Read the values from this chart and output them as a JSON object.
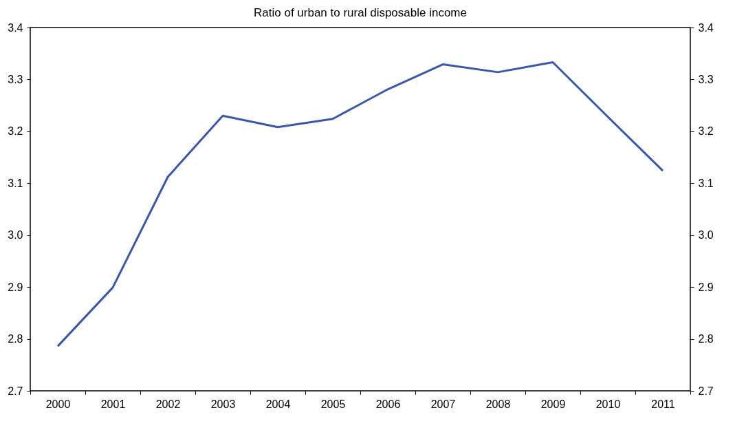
{
  "chart_data": {
    "type": "line",
    "title": "Ratio of urban to rural disposable income",
    "categories": [
      "2000",
      "2001",
      "2002",
      "2003",
      "2004",
      "2005",
      "2006",
      "2007",
      "2008",
      "2009",
      "2010",
      "2011"
    ],
    "series": [
      {
        "color": "#3a56a6",
        "values": [
          2.786,
          2.899,
          3.112,
          3.23,
          3.208,
          3.224,
          3.281,
          3.329,
          3.314,
          3.333,
          3.228,
          3.124
        ]
      }
    ],
    "ylim": [
      2.7,
      3.4
    ],
    "yticks": [
      2.7,
      2.8,
      2.9,
      {
        "value": 3.0,
        "label": "3.0"
      },
      3.1,
      3.2,
      3.3,
      3.4
    ],
    "y2lim": [
      2.7,
      3.4
    ],
    "y2ticks": [
      2.7,
      2.8,
      2.9,
      {
        "value": 3.0,
        "label": "3.0"
      },
      3.1,
      3.2,
      3.3,
      3.4
    ],
    "grid": false,
    "legend": false,
    "line_style": "solid",
    "marker": "none"
  }
}
